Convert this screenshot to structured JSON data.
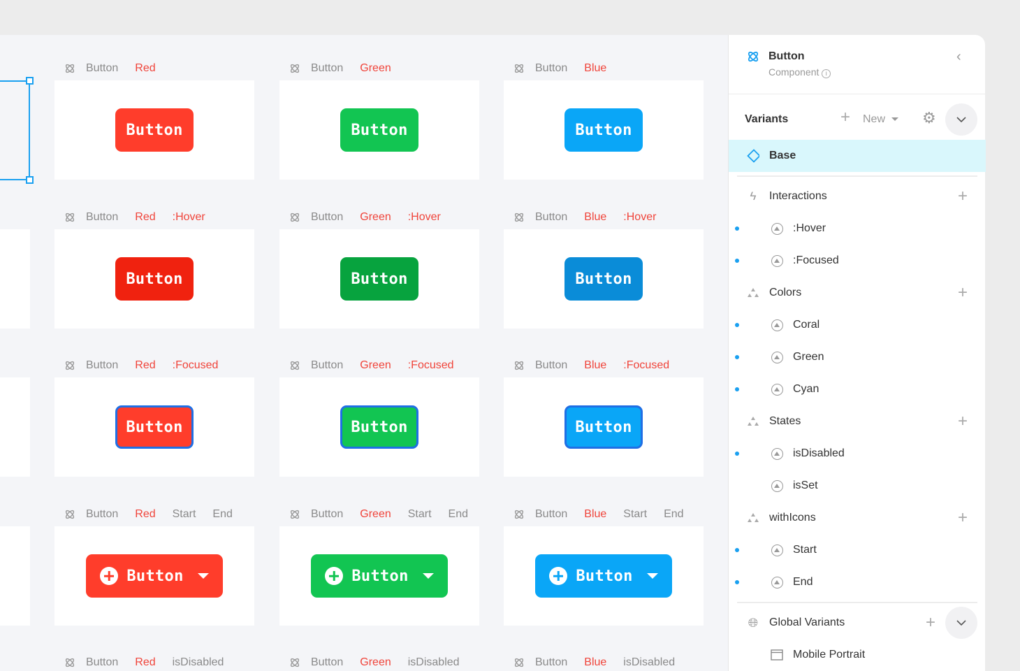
{
  "canvas": {
    "component_label": "Button",
    "columns": [
      {
        "color": "Red",
        "hex": "#ff3d2b",
        "hover_hex": "#f0220f"
      },
      {
        "color": "Green",
        "hex": "#12c552",
        "hover_hex": "#07a33e"
      },
      {
        "color": "Blue",
        "hex": "#0aa6f7",
        "hover_hex": "#0a8cd8"
      }
    ],
    "rows": [
      {
        "tags": [],
        "state": "base",
        "button_label": "Button"
      },
      {
        "tags": [
          ":Hover"
        ],
        "state": "hover",
        "button_label": "Button"
      },
      {
        "tags": [
          ":Focused"
        ],
        "state": "focused",
        "button_label": "Button"
      },
      {
        "tags": [
          "Start",
          "End"
        ],
        "state": "icons",
        "button_label": "Button"
      },
      {
        "tags": [
          "isDisabled"
        ],
        "state": "disabled",
        "button_label": "Button"
      }
    ]
  },
  "panel": {
    "title": "Button",
    "subtitle": "Component",
    "variants_label": "Variants",
    "new_label": "New",
    "base_label": "Base",
    "groups": [
      {
        "label": "Interactions",
        "icon": "lightning-icon",
        "items": [
          {
            "label": ":Hover",
            "dot": true
          },
          {
            "label": ":Focused",
            "dot": true
          }
        ]
      },
      {
        "label": "Colors",
        "icon": "triangles-icon",
        "items": [
          {
            "label": "Coral",
            "dot": true
          },
          {
            "label": "Green",
            "dot": true
          },
          {
            "label": "Cyan",
            "dot": true
          }
        ]
      },
      {
        "label": "States",
        "icon": "triangles-icon",
        "items": [
          {
            "label": "isDisabled",
            "dot": true
          },
          {
            "label": "isSet",
            "dot": false
          }
        ]
      },
      {
        "label": "withIcons",
        "icon": "triangles-icon",
        "items": [
          {
            "label": "Start",
            "dot": true
          },
          {
            "label": "End",
            "dot": true
          }
        ]
      }
    ],
    "global_variants_label": "Global Variants",
    "global_items": [
      {
        "label": "Mobile Portrait",
        "icon": "browser-window-icon"
      }
    ],
    "accent": "#1aa0f0",
    "base_highlight": "#d9f7fc"
  }
}
